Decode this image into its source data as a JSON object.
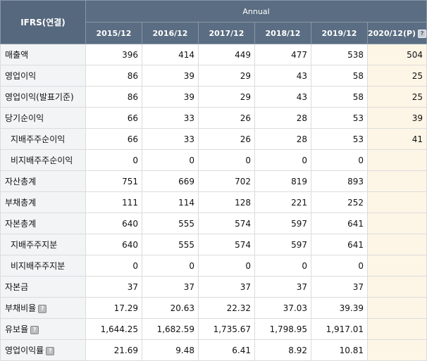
{
  "header": {
    "corner": "IFRS(연결)",
    "group": "Annual",
    "years": [
      "2015/12",
      "2016/12",
      "2017/12",
      "2018/12",
      "2019/12",
      "2020/12(P)"
    ]
  },
  "rows": [
    {
      "label": "매출액",
      "values": [
        "396",
        "414",
        "449",
        "477",
        "538",
        "504"
      ]
    },
    {
      "label": "영업이익",
      "values": [
        "86",
        "39",
        "29",
        "43",
        "58",
        "25"
      ]
    },
    {
      "label": "영업이익(발표기준)",
      "values": [
        "86",
        "39",
        "29",
        "43",
        "58",
        "25"
      ]
    },
    {
      "label": "당기순이익",
      "values": [
        "66",
        "33",
        "26",
        "28",
        "53",
        "39"
      ]
    },
    {
      "label": "지배주주순이익",
      "values": [
        "66",
        "33",
        "26",
        "28",
        "53",
        "41"
      ]
    },
    {
      "label": "비지배주주순이익",
      "values": [
        "0",
        "0",
        "0",
        "0",
        "0",
        ""
      ]
    },
    {
      "label": "자산총계",
      "values": [
        "751",
        "669",
        "702",
        "819",
        "893",
        ""
      ]
    },
    {
      "label": "부채총계",
      "values": [
        "111",
        "114",
        "128",
        "221",
        "252",
        ""
      ]
    },
    {
      "label": "자본총계",
      "values": [
        "640",
        "555",
        "574",
        "597",
        "641",
        ""
      ]
    },
    {
      "label": "지배주주지분",
      "values": [
        "640",
        "555",
        "574",
        "597",
        "641",
        ""
      ]
    },
    {
      "label": "비지배주주지분",
      "values": [
        "0",
        "0",
        "0",
        "0",
        "0",
        ""
      ]
    },
    {
      "label": "자본금",
      "values": [
        "37",
        "37",
        "37",
        "37",
        "37",
        ""
      ]
    },
    {
      "label": "부채비율",
      "values": [
        "17.29",
        "20.63",
        "22.32",
        "37.03",
        "39.39",
        ""
      ]
    },
    {
      "label": "유보율",
      "values": [
        "1,644.25",
        "1,682.59",
        "1,735.67",
        "1,798.95",
        "1,917.01",
        ""
      ]
    },
    {
      "label": "영업이익률",
      "values": [
        "21.69",
        "9.48",
        "6.41",
        "8.92",
        "10.81",
        ""
      ]
    }
  ],
  "help_glyph": "?",
  "colors": {
    "header_bg": "#5a6d82",
    "estimate_bg": "#fdf5e6",
    "label_bg": "#f2f4f6"
  }
}
